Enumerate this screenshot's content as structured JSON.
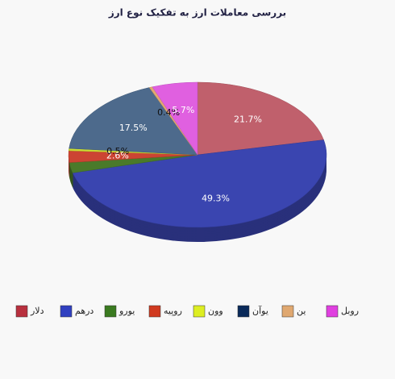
{
  "chart_data": {
    "type": "pie3d",
    "title": "بررسی معاملات ارز به تفکیک نوع ارز",
    "categories": [
      "دلار",
      "درهم",
      "یورو",
      "روپیه",
      "وون",
      "یوآن",
      "ین",
      "روبل"
    ],
    "values": [
      21.7,
      49.3,
      2.3,
      2.6,
      0.5,
      17.5,
      0.4,
      5.7
    ],
    "value_labels": [
      "21.7%",
      "49.3%",
      null,
      "2.6%",
      "0.5%",
      "17.5%",
      "0.4%",
      "5.7%"
    ],
    "colors": [
      "#c0606c",
      "#3a45b0",
      "#4a7a2a",
      "#cc4433",
      "#ccdd33",
      "#4d6a8c",
      "#e0a870",
      "#e060e0"
    ],
    "legend_colors": [
      "#b8303e",
      "#3040c0",
      "#3a7a20",
      "#d03a20",
      "#ddee22",
      "#0a2a5a",
      "#e0a870",
      "#e040e0"
    ],
    "legend": "bottom"
  }
}
